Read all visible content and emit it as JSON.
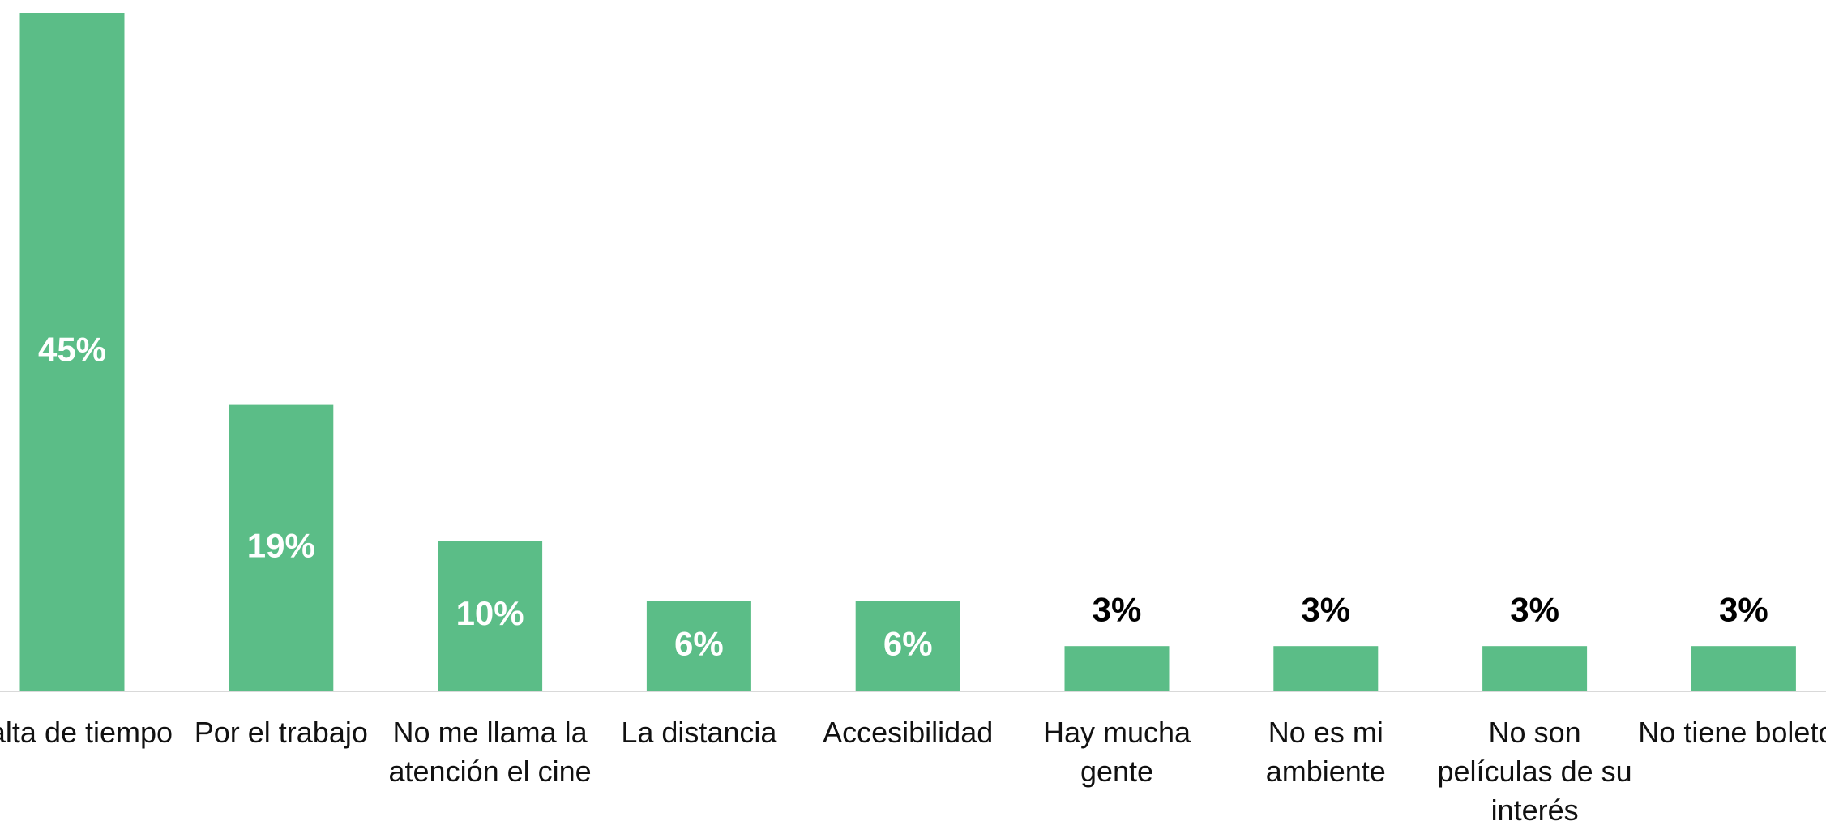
{
  "chart_data": {
    "type": "bar",
    "categories": [
      "Falta de tiempo",
      "Por el trabajo",
      "No me llama la atención el cine",
      "La distancia",
      "Accesibilidad",
      "Hay mucha gente",
      "No es mi ambiente",
      "No son películas de su interés",
      "No tiene boletos"
    ],
    "values": [
      45,
      19,
      10,
      6,
      6,
      3,
      3,
      3,
      3
    ],
    "value_labels": [
      "45%",
      "19%",
      "10%",
      "6%",
      "6%",
      "3%",
      "3%",
      "3%",
      "3%"
    ],
    "color": "#5bbd87",
    "ylim": [
      0,
      45
    ]
  }
}
